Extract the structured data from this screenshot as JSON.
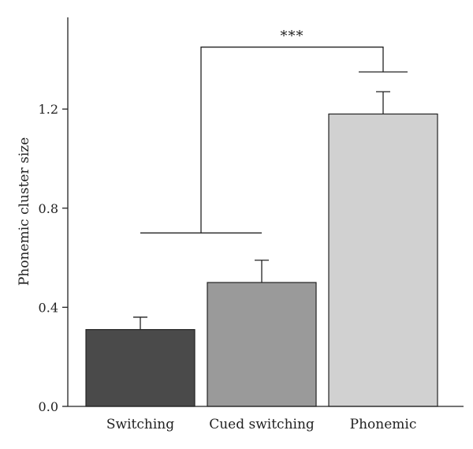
{
  "chart_data": {
    "type": "bar",
    "title": "",
    "xlabel": "",
    "ylabel": "Phonemic cluster size",
    "categories": [
      "Switching",
      "Cued switching",
      "Phonemic"
    ],
    "values": [
      0.31,
      0.5,
      1.18
    ],
    "errors": [
      0.05,
      0.09,
      0.09
    ],
    "colors": [
      "#4a4a4a",
      "#9a9a9a",
      "#d1d1d1"
    ],
    "ylim": [
      0,
      1.6
    ],
    "yticks": [
      0.0,
      0.4,
      0.8,
      1.2
    ],
    "ytick_labels": [
      "0.0",
      "0.4",
      "0.8",
      "1.2"
    ],
    "grid": false,
    "annotations": [
      {
        "text": "***",
        "left_group": [
          0,
          1
        ],
        "right_group": [
          2
        ],
        "left_bracket_y": 0.7,
        "right_bracket_y": 1.35,
        "top_y": 1.45
      }
    ]
  }
}
